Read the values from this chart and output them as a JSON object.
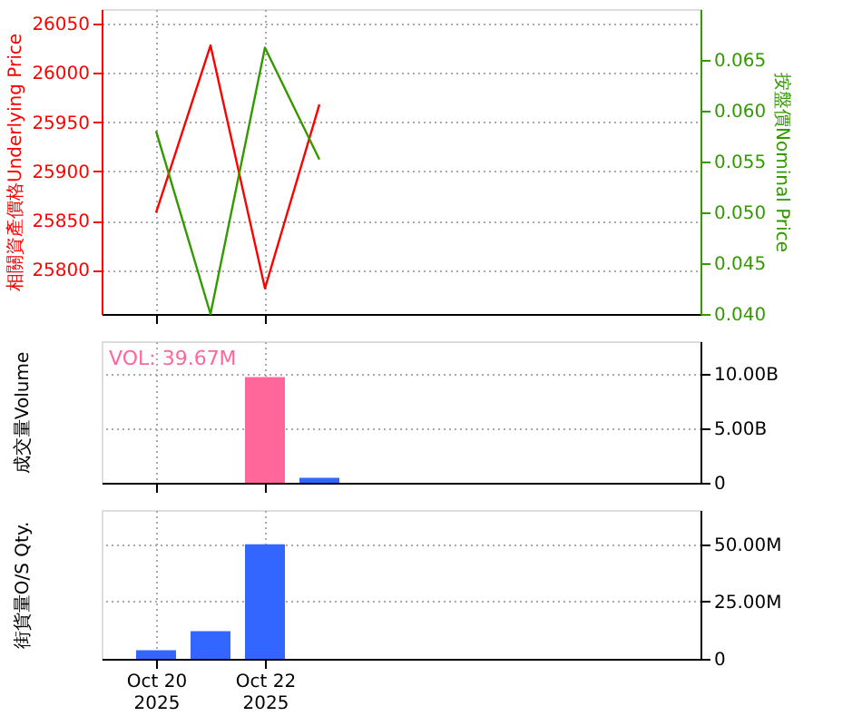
{
  "chart_data": [
    {
      "type": "line",
      "x": [
        "2025-10-20",
        "2025-10-21",
        "2025-10-22",
        "2025-10-23"
      ],
      "xlim": [
        "2025-10-19",
        "2025-10-30"
      ],
      "xticks": [
        {
          "value": "2025-10-20",
          "label": null
        },
        {
          "value": "2025-10-22",
          "label": null
        }
      ],
      "ylabel": "相關資產價格Underlying Price",
      "y2label": "按盤價Nominal Price",
      "ylim": [
        25755,
        26065
      ],
      "yticks": [
        25800,
        25850,
        25900,
        25950,
        26000,
        26050
      ],
      "y2lim": [
        0.04,
        0.07
      ],
      "y2ticks": [
        {
          "value": 0.04,
          "label": "0.040"
        },
        {
          "value": 0.045,
          "label": "0.045"
        },
        {
          "value": 0.05,
          "label": "0.050"
        },
        {
          "value": 0.055,
          "label": "0.055"
        },
        {
          "value": 0.06,
          "label": "0.060"
        },
        {
          "value": 0.065,
          "label": "0.065"
        }
      ],
      "grid": true,
      "tick_labels": "y",
      "series": [
        {
          "color": "#ff0000",
          "values": [
            25858,
            26028,
            25781,
            25968
          ]
        },
        {
          "color": "#339900",
          "axis": "y2",
          "values": [
            0.058,
            0.04,
            0.0662,
            0.0552
          ]
        }
      ]
    },
    {
      "type": "bar",
      "x": [
        "2025-10-22",
        "2025-10-23"
      ],
      "xlim": [
        "2025-10-19",
        "2025-10-30"
      ],
      "xticks": [
        {
          "value": "2025-10-20",
          "label": null
        },
        {
          "value": "2025-10-22",
          "label": null
        }
      ],
      "ylabel": "成交量Volume",
      "ylim": [
        0,
        13000000000
      ],
      "yticks": [
        0,
        {
          "value": 5000000000,
          "label": "5.00B"
        },
        {
          "value": 10000000000,
          "label": "10.00B"
        }
      ],
      "values": [
        9700000000,
        450000000
      ],
      "colors": [
        "#ff6699",
        "#3366ff"
      ],
      "annotations": [
        "VOL: 39.67M"
      ],
      "grid": true,
      "tick_labels": "y"
    },
    {
      "type": "bar",
      "x": [
        "2025-10-20",
        "2025-10-21",
        "2025-10-22"
      ],
      "xlim": [
        "2025-10-19",
        "2025-10-30"
      ],
      "xticks": [
        {
          "value": "2025-10-20",
          "label": "Oct 20\n2025"
        },
        {
          "value": "2025-10-22",
          "label": "Oct 22\n2025"
        }
      ],
      "ylabel": "街貨量O/S Qty.",
      "ylim": [
        0,
        65000000
      ],
      "yticks": [
        0,
        {
          "value": 25000000,
          "label": "25.00M"
        },
        {
          "value": 50000000,
          "label": "50.00M"
        }
      ],
      "values": [
        3800000,
        12100000,
        50000000
      ],
      "colors": [
        "#3366ff",
        "#3366ff",
        "#3366ff"
      ],
      "grid": true
    }
  ]
}
